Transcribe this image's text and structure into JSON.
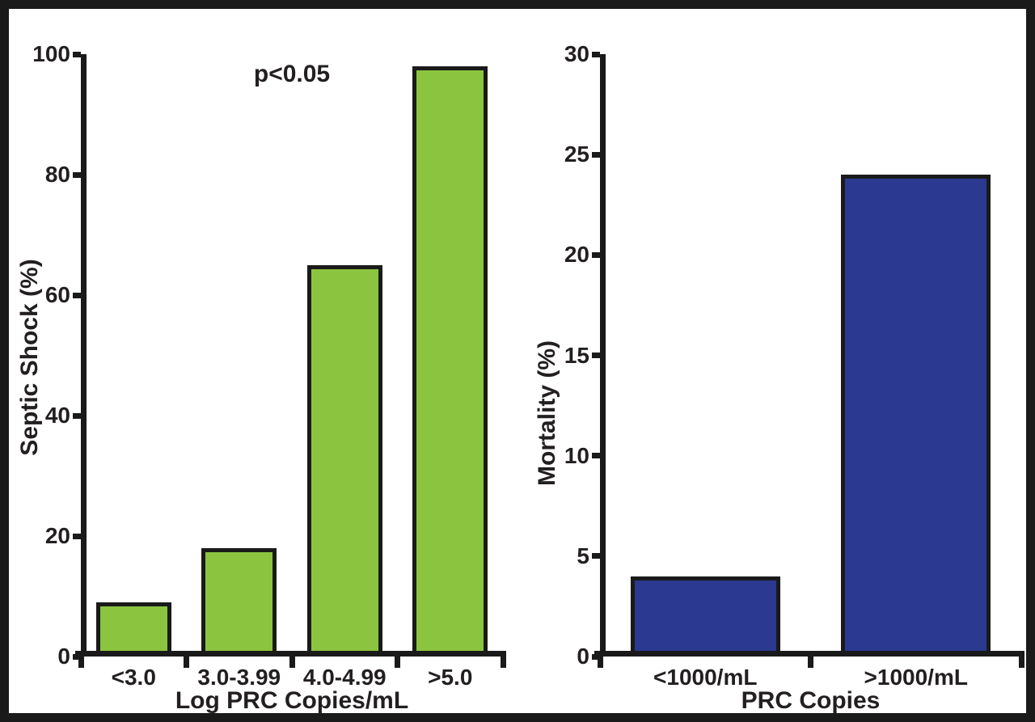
{
  "colors": {
    "frame": "#1A1A1A",
    "background": "#FFFFFF",
    "text": "#231F20",
    "axis": "#1A1A1A",
    "green_bar": "#8BC53F",
    "blue_bar": "#2B3990"
  },
  "chart_data": [
    {
      "type": "bar",
      "annotation": "p<0.05",
      "categories": [
        "<3.0",
        "3.0-3.99",
        "4.0-4.99",
        ">5.0"
      ],
      "values": [
        9,
        18,
        65,
        98
      ],
      "xlabel": "Log PRC Copies/mL",
      "ylabel": "Septic Shock (%)",
      "ylim": [
        0,
        100
      ],
      "yticks": [
        0,
        20,
        40,
        60,
        80,
        100
      ],
      "bar_color": "#8BC53F",
      "bar_border_color": "#1A1A1A",
      "grid": false,
      "legend": false
    },
    {
      "type": "bar",
      "annotation": "",
      "categories": [
        "<1000/mL",
        ">1000/mL"
      ],
      "values": [
        4,
        24
      ],
      "xlabel": "PRC Copies",
      "ylabel": "Mortality (%)",
      "ylim": [
        0,
        30
      ],
      "yticks": [
        0,
        5,
        10,
        15,
        20,
        25,
        30
      ],
      "bar_color": "#2B3990",
      "bar_border_color": "#1A1A1A",
      "grid": false,
      "legend": false
    }
  ]
}
